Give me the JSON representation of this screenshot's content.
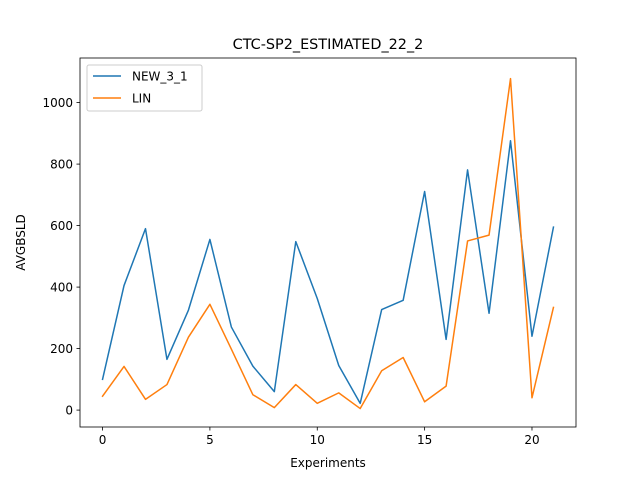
{
  "chart_data": {
    "type": "line",
    "title": "CTC-SP2_ESTIMATED_22_2",
    "xlabel": "Experiments",
    "ylabel": "AVGBSLD",
    "xlim": [
      -1.05,
      22.05
    ],
    "ylim": [
      -55,
      1145
    ],
    "xticks": [
      0,
      5,
      10,
      15,
      20
    ],
    "yticks": [
      0,
      200,
      400,
      600,
      800,
      1000
    ],
    "grid": false,
    "legend_position": "upper left",
    "x": [
      0,
      1,
      2,
      3,
      4,
      5,
      6,
      7,
      8,
      9,
      10,
      11,
      12,
      13,
      14,
      15,
      16,
      17,
      18,
      19,
      20,
      21
    ],
    "series": [
      {
        "name": "NEW_3_1",
        "color": "#1f77b4",
        "values": [
          100,
          405,
          590,
          165,
          325,
          555,
          270,
          143,
          60,
          548,
          363,
          145,
          22,
          327,
          357,
          711,
          230,
          781,
          315,
          876,
          240,
          595
        ]
      },
      {
        "name": "LIN",
        "color": "#ff7f0e",
        "values": [
          45,
          142,
          35,
          83,
          237,
          344,
          198,
          50,
          8,
          83,
          22,
          56,
          5,
          128,
          171,
          27,
          78,
          550,
          569,
          1078,
          40,
          334
        ]
      }
    ]
  }
}
